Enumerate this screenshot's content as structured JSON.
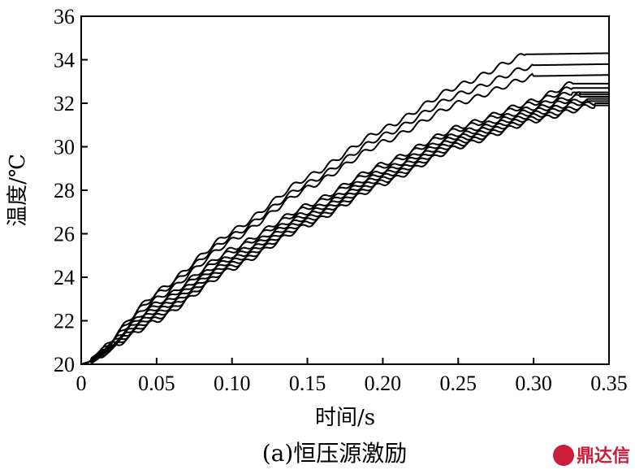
{
  "caption": "(a)恒压源激励",
  "watermark": {
    "text": "鼎达信",
    "color": "#cc1d3a"
  },
  "chart_data": {
    "type": "line",
    "xlabel": "时间/s",
    "ylabel": "温度/℃",
    "xlim": [
      0,
      0.35
    ],
    "ylim": [
      20,
      36
    ],
    "xticks": [
      "0",
      "0.05",
      "0.10",
      "0.15",
      "0.20",
      "0.25",
      "0.30",
      "0.35"
    ],
    "yticks": [
      "20",
      "22",
      "24",
      "26",
      "28",
      "30",
      "32",
      "34",
      "36"
    ],
    "line_color": "#000000",
    "grid": false,
    "legend": "none",
    "series": [
      {
        "x": [
          0,
          0.005,
          0.05,
          0.1,
          0.15,
          0.2,
          0.25,
          0.295,
          0.35
        ],
        "y": [
          20,
          20.1,
          23.3,
          26.1,
          28.6,
          30.8,
          32.8,
          34.25,
          34.3
        ]
      },
      {
        "x": [
          0,
          0.005,
          0.05,
          0.1,
          0.15,
          0.2,
          0.25,
          0.3,
          0.35
        ],
        "y": [
          20,
          20.1,
          23.2,
          25.9,
          28.3,
          30.5,
          32.4,
          33.75,
          33.8
        ]
      },
      {
        "x": [
          0,
          0.005,
          0.05,
          0.1,
          0.15,
          0.2,
          0.25,
          0.3,
          0.35
        ],
        "y": [
          20,
          20.1,
          23.0,
          25.7,
          28.1,
          30.2,
          32.0,
          33.25,
          33.3
        ]
      },
      {
        "x": [
          0,
          0.005,
          0.05,
          0.1,
          0.15,
          0.2,
          0.25,
          0.3,
          0.325,
          0.35
        ],
        "y": [
          20,
          20.1,
          22.8,
          25.3,
          27.3,
          29.2,
          30.9,
          32.1,
          32.9,
          32.9
        ]
      },
      {
        "x": [
          0,
          0.005,
          0.05,
          0.1,
          0.15,
          0.2,
          0.25,
          0.3,
          0.325,
          0.35
        ],
        "y": [
          20,
          20.1,
          22.7,
          25.2,
          27.2,
          29.1,
          30.8,
          32.0,
          32.7,
          32.7
        ]
      },
      {
        "x": [
          0,
          0.005,
          0.05,
          0.1,
          0.15,
          0.2,
          0.25,
          0.3,
          0.325,
          0.35
        ],
        "y": [
          20,
          20.1,
          22.6,
          25.0,
          27.0,
          28.9,
          30.6,
          31.8,
          32.5,
          32.5
        ]
      },
      {
        "x": [
          0,
          0.005,
          0.05,
          0.1,
          0.15,
          0.2,
          0.25,
          0.3,
          0.33,
          0.35
        ],
        "y": [
          20,
          20.1,
          22.5,
          24.9,
          26.9,
          28.8,
          30.5,
          31.7,
          32.4,
          32.4
        ]
      },
      {
        "x": [
          0,
          0.005,
          0.05,
          0.1,
          0.15,
          0.2,
          0.25,
          0.3,
          0.33,
          0.35
        ],
        "y": [
          20,
          20.1,
          22.4,
          24.8,
          26.8,
          28.7,
          30.4,
          31.6,
          32.3,
          32.3
        ]
      },
      {
        "x": [
          0,
          0.005,
          0.05,
          0.1,
          0.15,
          0.2,
          0.25,
          0.3,
          0.335,
          0.35
        ],
        "y": [
          20,
          20.1,
          22.3,
          24.7,
          26.7,
          28.6,
          30.3,
          31.5,
          32.2,
          32.2
        ]
      },
      {
        "x": [
          0,
          0.005,
          0.05,
          0.1,
          0.15,
          0.2,
          0.25,
          0.3,
          0.335,
          0.35
        ],
        "y": [
          20,
          20.1,
          22.2,
          24.6,
          26.6,
          28.5,
          30.2,
          31.4,
          32.1,
          32.1
        ]
      },
      {
        "x": [
          0,
          0.005,
          0.05,
          0.1,
          0.15,
          0.2,
          0.25,
          0.3,
          0.34,
          0.35
        ],
        "y": [
          20,
          20.1,
          22.1,
          24.5,
          26.5,
          28.4,
          30.1,
          31.3,
          32.0,
          32.0
        ]
      },
      {
        "x": [
          0,
          0.005,
          0.05,
          0.1,
          0.15,
          0.2,
          0.25,
          0.3,
          0.34,
          0.35
        ],
        "y": [
          20,
          20.1,
          22.0,
          24.4,
          26.4,
          28.3,
          30.0,
          31.2,
          31.9,
          31.9
        ]
      }
    ]
  }
}
